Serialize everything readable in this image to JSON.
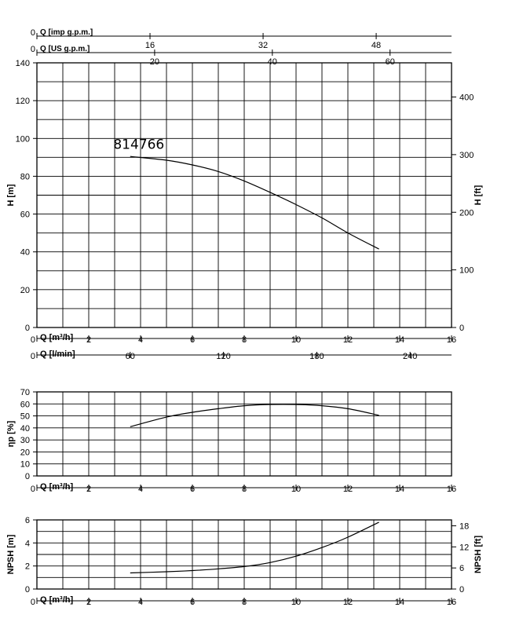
{
  "model_label": "814766",
  "top_axes": {
    "imp_gpm": {
      "label": "Q [imp g.p.m.]",
      "zero": "0",
      "ticks": [
        {
          "v": 16,
          "t": "16"
        },
        {
          "v": 32,
          "t": "32"
        },
        {
          "v": 48,
          "t": "48"
        }
      ]
    },
    "us_gpm": {
      "label": "Q [US g.p.m.]",
      "zero": "0",
      "ticks": [
        {
          "v": 20,
          "t": "20"
        },
        {
          "v": 40,
          "t": "40"
        },
        {
          "v": 60,
          "t": "60"
        }
      ]
    }
  },
  "bottom_axes": {
    "m3h_label": "Q [m³/h]",
    "lmin_label": "Q [l/min]",
    "lmin_ticks": [
      {
        "v": 0,
        "t": "0"
      },
      {
        "v": 60,
        "t": "60"
      },
      {
        "v": 120,
        "t": "120"
      },
      {
        "v": 180,
        "t": "180"
      },
      {
        "v": 240,
        "t": "240"
      }
    ]
  },
  "chart_data": [
    {
      "type": "line",
      "ylabel": "H [m]",
      "y2label": "H [ft]",
      "xlabel": "Q [m³/h]",
      "xlim": [
        0,
        16
      ],
      "xticks": [
        "0",
        "2",
        "4",
        "6",
        "8",
        "10",
        "12",
        "14",
        "16"
      ],
      "ylim": [
        0,
        140
      ],
      "yticks": [
        "0",
        "20",
        "40",
        "60",
        "80",
        "100",
        "120",
        "140"
      ],
      "y2ticks": [
        {
          "v": 0,
          "t": "0"
        },
        {
          "v": 100,
          "t": "100"
        },
        {
          "v": 200,
          "t": "200"
        },
        {
          "v": 300,
          "t": "300"
        },
        {
          "v": 400,
          "t": "400"
        }
      ],
      "grid": true,
      "series": [
        {
          "name": "814766",
          "x": [
            3.6,
            5,
            6,
            7,
            8,
            9,
            10,
            11,
            12,
            13.2
          ],
          "y": [
            90.5,
            88.5,
            86,
            82.5,
            77.5,
            71.5,
            65,
            58,
            50,
            41.5
          ]
        }
      ]
    },
    {
      "type": "line",
      "ylabel": "ηp [%]",
      "xlabel": "Q [m³/h]",
      "xlim": [
        0,
        16
      ],
      "xticks": [
        "0",
        "2",
        "4",
        "6",
        "8",
        "10",
        "12",
        "14",
        "16"
      ],
      "ylim": [
        0,
        70
      ],
      "yticks": [
        "0",
        "10",
        "20",
        "30",
        "40",
        "50",
        "60",
        "70"
      ],
      "grid": true,
      "series": [
        {
          "x": [
            3.6,
            5,
            6,
            7,
            8,
            9,
            10,
            11,
            12,
            13.2
          ],
          "y": [
            41,
            49,
            53,
            56,
            58.5,
            59.5,
            59.5,
            58.5,
            56,
            50.5
          ]
        }
      ]
    },
    {
      "type": "line",
      "ylabel": "NPSH [m]",
      "y2label": "NPSH [ft]",
      "xlabel": "Q [m³/h]",
      "xlim": [
        0,
        16
      ],
      "xticks": [
        "0",
        "2",
        "4",
        "6",
        "8",
        "10",
        "12",
        "14",
        "16"
      ],
      "ylim": [
        0,
        6
      ],
      "yticks": [
        "0",
        "2",
        "4",
        "6"
      ],
      "y2ticks": [
        {
          "v": 0,
          "t": "0"
        },
        {
          "v": 6,
          "t": "6"
        },
        {
          "v": 12,
          "t": "12"
        },
        {
          "v": 18,
          "t": "18"
        }
      ],
      "grid": true,
      "series": [
        {
          "x": [
            3.6,
            5,
            6,
            7,
            8,
            9,
            10,
            11,
            12,
            13.2
          ],
          "y": [
            1.4,
            1.5,
            1.6,
            1.75,
            1.95,
            2.3,
            2.85,
            3.6,
            4.5,
            5.8
          ]
        }
      ]
    }
  ]
}
